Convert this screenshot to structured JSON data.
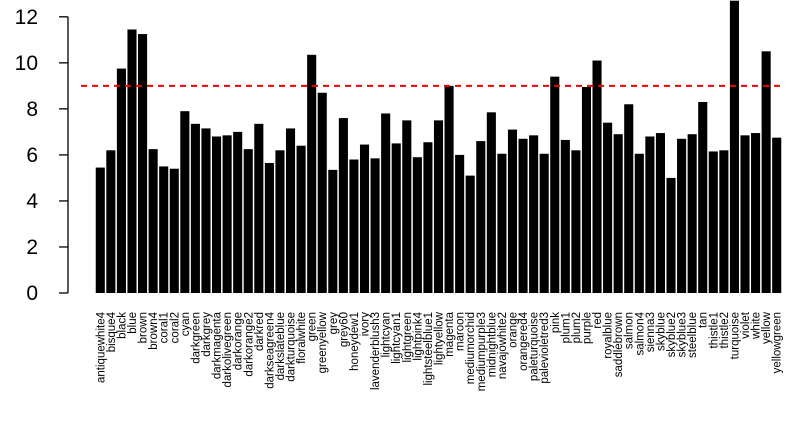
{
  "chart_data": {
    "type": "bar",
    "title": "",
    "xlabel": "",
    "ylabel": "",
    "ylim": [
      0,
      12.6
    ],
    "yticks": [
      0,
      2,
      4,
      6,
      8,
      10,
      12
    ],
    "grid": false,
    "legend": "none",
    "bar_color": "#000000",
    "reference_line": {
      "value": 9.0,
      "color": "#ee0000",
      "style": "dashed"
    },
    "categories": [
      "antiquewhite4",
      "bisque4",
      "black",
      "blue",
      "brown",
      "brown4",
      "coral1",
      "coral2",
      "cyan",
      "darkgreen",
      "darkgrey",
      "darkmagenta",
      "darkolivegreen",
      "darkorange",
      "darkorange2",
      "darkred",
      "darkseagreen4",
      "darkslateblue",
      "darkturquoise",
      "floralwhite",
      "green",
      "greenyellow",
      "grey",
      "grey60",
      "honeydew1",
      "ivory",
      "lavenderblush3",
      "lightcyan",
      "lightcyan1",
      "lightgreen",
      "lightpink4",
      "lightsteelblue1",
      "lightyellow",
      "magenta",
      "maroon",
      "mediumorchid",
      "mediumpurple3",
      "midnightblue",
      "navajowhite2",
      "orange",
      "orangered4",
      "paleturquoise",
      "palevioletred3",
      "pink",
      "plum1",
      "plum2",
      "purple",
      "red",
      "royalblue",
      "saddlebrown",
      "salmon",
      "salmon4",
      "sienna3",
      "skyblue",
      "skyblue2",
      "skyblue3",
      "steelblue",
      "tan",
      "thistle1",
      "thistle2",
      "turquoise",
      "violet",
      "white",
      "yellow",
      "yellowgreen"
    ],
    "values": [
      5.45,
      6.2,
      9.75,
      11.45,
      11.25,
      6.25,
      5.5,
      5.4,
      7.9,
      7.35,
      7.15,
      6.8,
      6.85,
      7.0,
      6.25,
      7.35,
      5.65,
      6.2,
      7.15,
      6.4,
      10.35,
      8.7,
      5.35,
      7.6,
      5.8,
      6.45,
      5.85,
      7.8,
      6.5,
      7.5,
      5.9,
      6.55,
      7.5,
      9.0,
      6.0,
      5.1,
      6.6,
      7.85,
      6.05,
      7.1,
      6.7,
      6.85,
      6.05,
      9.4,
      6.65,
      6.2,
      8.95,
      10.1,
      7.4,
      6.9,
      8.2,
      6.05,
      6.8,
      6.95,
      5.0,
      6.7,
      6.9,
      8.3,
      6.15,
      6.2,
      12.7,
      6.85,
      6.95,
      10.5,
      6.75
    ]
  }
}
